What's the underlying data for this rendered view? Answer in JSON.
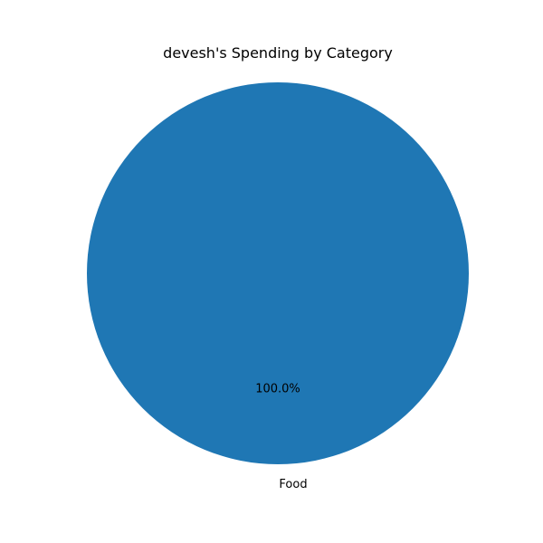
{
  "chart_data": {
    "type": "pie",
    "title": "devesh's Spending by Category",
    "slices": [
      {
        "label": "Food",
        "value": 100,
        "percent_label": "100.0%",
        "color": "#1f77b4"
      }
    ],
    "legend": "none"
  }
}
